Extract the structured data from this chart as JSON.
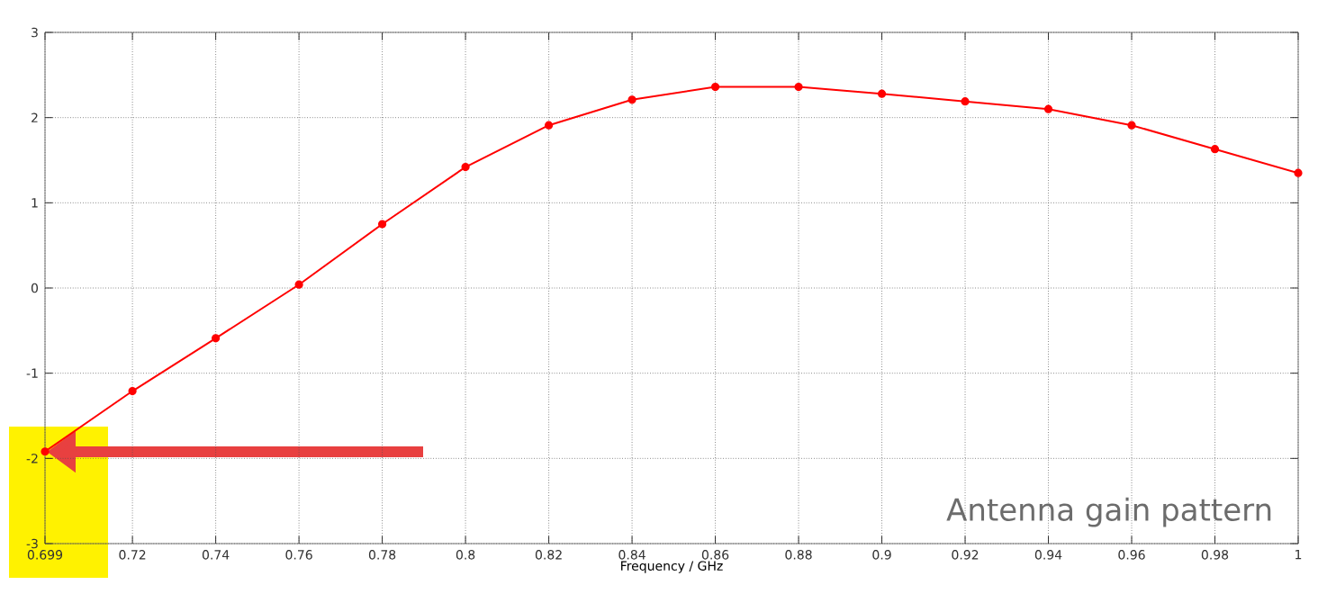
{
  "chart_data": {
    "type": "line",
    "xlabel": "Frequency / GHz",
    "annotations": [
      "Antenna gain pattern"
    ],
    "x": [
      0.699,
      0.72,
      0.74,
      0.76,
      0.78,
      0.8,
      0.82,
      0.84,
      0.86,
      0.88,
      0.9,
      0.92,
      0.94,
      0.96,
      0.98,
      1
    ],
    "series": [
      {
        "color": "#ff0000",
        "values": [
          -1.92,
          -1.21,
          -0.59,
          0.04,
          0.75,
          1.42,
          1.91,
          2.21,
          2.36,
          2.36,
          2.28,
          2.19,
          2.1,
          1.91,
          1.63,
          1.35
        ]
      }
    ],
    "xlim": [
      0.699,
      1
    ],
    "ylim": [
      -3,
      3
    ],
    "xticks": [
      0.699,
      0.72,
      0.74,
      0.76,
      0.78,
      0.8,
      0.82,
      0.84,
      0.86,
      0.88,
      0.9,
      0.92,
      0.94,
      0.96,
      0.98,
      1
    ],
    "yticks": [
      -3,
      -2,
      -1,
      0,
      1,
      2,
      3
    ],
    "grid": true,
    "marker": "circle",
    "line_style": "solid"
  }
}
